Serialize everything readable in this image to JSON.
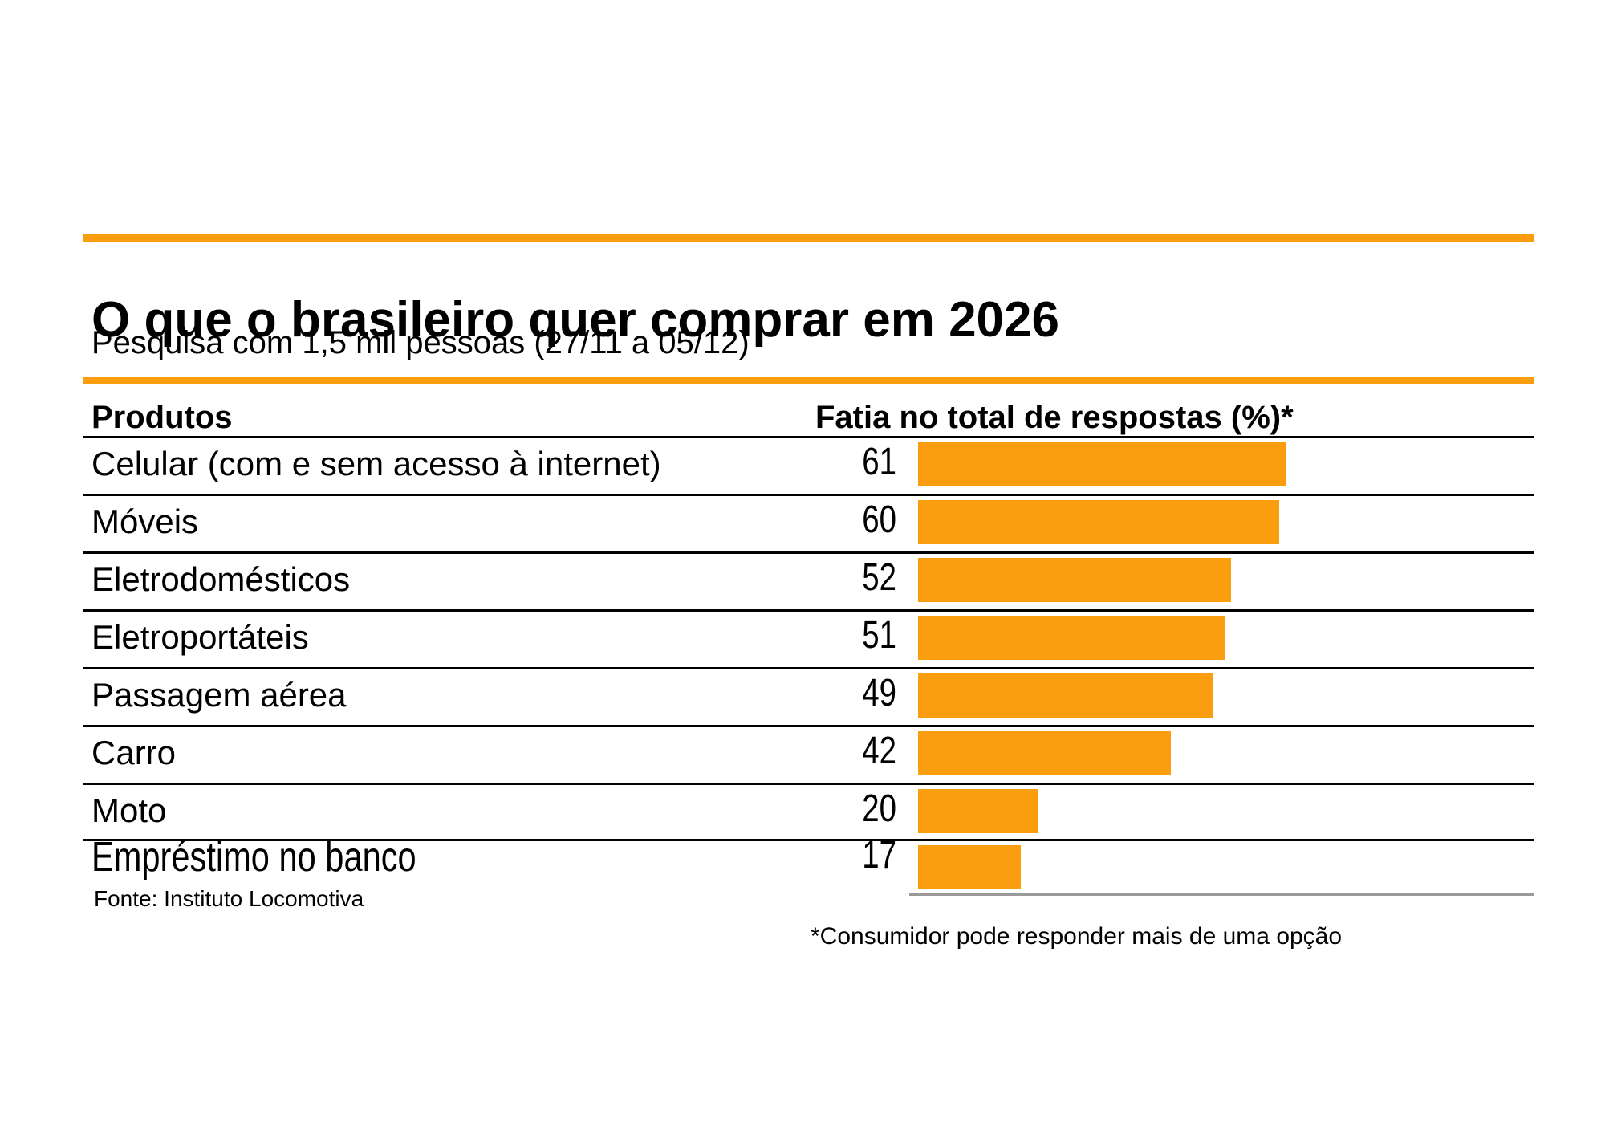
{
  "title": "O que o brasileiro quer comprar em 2026",
  "subtitle": "Pesquisa com 1,5 mil pessoas (27/11 a 05/12)",
  "table_header": {
    "products": "Produtos",
    "share": "Fatia no total de respostas (%)*"
  },
  "source": "Fonte: Instituto Locomotiva",
  "footnote": "*Consumidor pode responder mais de uma opção",
  "colors": {
    "accent_orange": "#FA9E0F",
    "rule_black": "#000000",
    "baseline_gray": "#9A9A9A",
    "text": "#000000",
    "background": "#FFFFFF"
  },
  "chart_data": {
    "type": "bar",
    "orientation": "horizontal",
    "title": "O que o brasileiro quer comprar em 2026",
    "subtitle": "Pesquisa com 1,5 mil pessoas (27/11 a 05/12)",
    "category_label": "Produtos",
    "value_label": "Fatia no total de respostas (%)*",
    "categories": [
      "Celular (com e sem acesso à internet)",
      "Móveis",
      "Eletrodomésticos",
      "Eletroportáteis",
      "Passagem aérea",
      "Carro",
      "Moto",
      "Empréstimo no banco"
    ],
    "values": [
      61,
      60,
      52,
      51,
      49,
      42,
      20,
      17
    ],
    "xlim": [
      0,
      100
    ],
    "unit": "%",
    "grid": false,
    "legend": false,
    "bar_color": "#FA9E0F",
    "source": "Fonte: Instituto Locomotiva",
    "footnote": "*Consumidor pode responder mais de uma opção"
  }
}
